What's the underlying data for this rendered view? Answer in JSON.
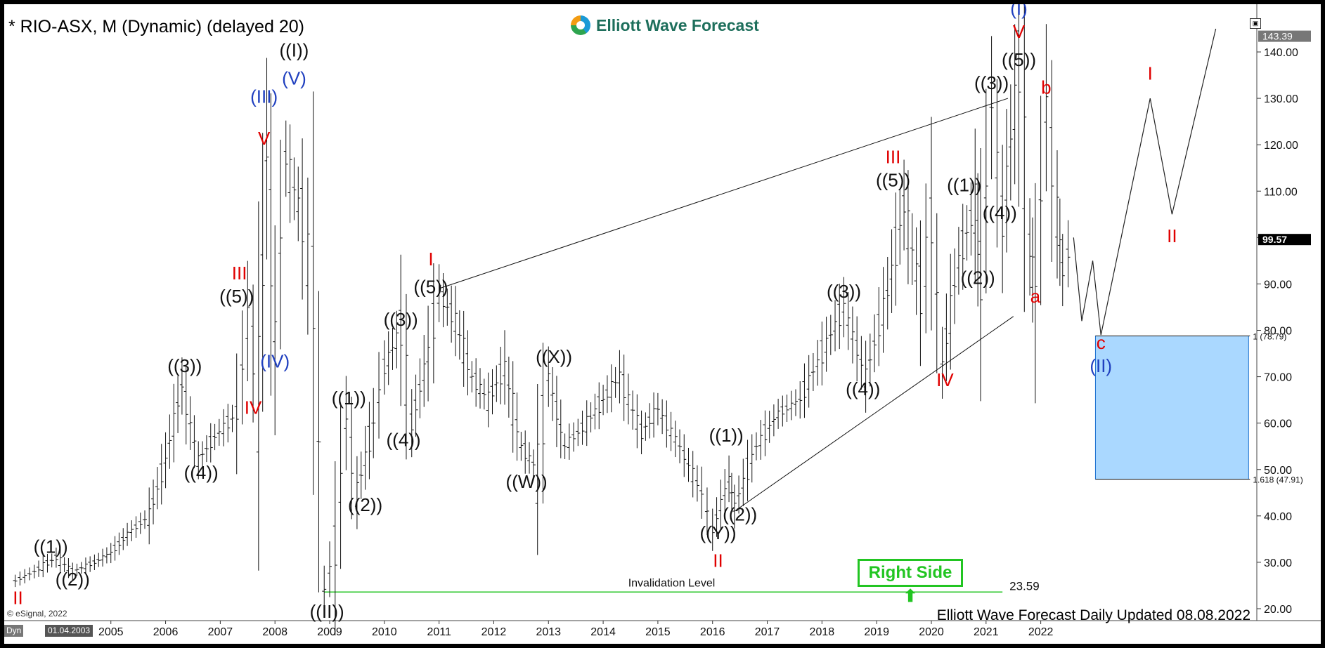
{
  "header": {
    "title": "* RIO-ASX, M (Dynamic) (delayed 20)",
    "brand": "Elliott Wave Forecast"
  },
  "footer": {
    "updated": "Elliott Wave Forecast Daily Updated 08.08.2022",
    "copyright": "© eSignal, 2022",
    "axis_stub": "Dyn",
    "start_date": "01.04.2003"
  },
  "badge": {
    "right_side": "Right Side ⬆"
  },
  "chart_data": {
    "type": "candlestick",
    "title": "* RIO-ASX, M (Dynamic) (delayed 20)",
    "x_axis": {
      "ticks": [
        "2005",
        "2006",
        "2007",
        "2008",
        "2009",
        "2010",
        "2011",
        "2012",
        "2013",
        "2014",
        "2015",
        "2016",
        "2017",
        "2018",
        "2019",
        "2020",
        "2021",
        "2022"
      ]
    },
    "y_axis": {
      "ticks": [
        "20.00",
        "30.00",
        "40.00",
        "50.00",
        "60.00",
        "70.00",
        "80.00",
        "90.00",
        "100.00",
        "110.00",
        "120.00",
        "130.00",
        "140.00"
      ],
      "range": [
        17,
        147
      ],
      "position": "right"
    },
    "price_markers": [
      {
        "value": 143.39,
        "label": "143.39",
        "style": "grey"
      },
      {
        "value": 99.57,
        "label": "99.57",
        "style": "black"
      }
    ],
    "price_path": [
      [
        2003.25,
        26
      ],
      [
        2003.6,
        28
      ],
      [
        2004.0,
        31
      ],
      [
        2004.3,
        28
      ],
      [
        2004.7,
        30
      ],
      [
        2005.0,
        32
      ],
      [
        2005.3,
        36
      ],
      [
        2005.7,
        40
      ],
      [
        2006.0,
        52
      ],
      [
        2006.3,
        68
      ],
      [
        2006.6,
        52
      ],
      [
        2006.9,
        57
      ],
      [
        2007.3,
        62
      ],
      [
        2007.5,
        82
      ],
      [
        2007.7,
        68
      ],
      [
        2007.85,
        117
      ],
      [
        2008.0,
        80
      ],
      [
        2008.2,
        117
      ],
      [
        2008.5,
        104
      ],
      [
        2008.7,
        88
      ],
      [
        2008.9,
        24
      ],
      [
        2009.1,
        33
      ],
      [
        2009.3,
        60
      ],
      [
        2009.5,
        45
      ],
      [
        2009.8,
        60
      ],
      [
        2010.0,
        72
      ],
      [
        2010.3,
        80
      ],
      [
        2010.5,
        60
      ],
      [
        2010.8,
        75
      ],
      [
        2011.0,
        88
      ],
      [
        2011.3,
        82
      ],
      [
        2011.6,
        70
      ],
      [
        2011.9,
        65
      ],
      [
        2012.2,
        72
      ],
      [
        2012.5,
        55
      ],
      [
        2012.8,
        50
      ],
      [
        2013.0,
        70
      ],
      [
        2013.3,
        55
      ],
      [
        2013.7,
        60
      ],
      [
        2014.0,
        65
      ],
      [
        2014.3,
        70
      ],
      [
        2014.7,
        58
      ],
      [
        2015.0,
        63
      ],
      [
        2015.4,
        55
      ],
      [
        2015.8,
        45
      ],
      [
        2016.0,
        37
      ],
      [
        2016.3,
        48
      ],
      [
        2016.4,
        42
      ],
      [
        2016.8,
        55
      ],
      [
        2017.2,
        62
      ],
      [
        2017.6,
        65
      ],
      [
        2018.0,
        75
      ],
      [
        2018.4,
        85
      ],
      [
        2018.8,
        70
      ],
      [
        2019.2,
        88
      ],
      [
        2019.5,
        107
      ],
      [
        2019.8,
        88
      ],
      [
        2020.0,
        103
      ],
      [
        2020.2,
        73
      ],
      [
        2020.5,
        95
      ],
      [
        2020.8,
        107
      ],
      [
        2020.9,
        92
      ],
      [
        2021.1,
        128
      ],
      [
        2021.3,
        104
      ],
      [
        2021.6,
        137
      ],
      [
        2021.8,
        98
      ],
      [
        2021.9,
        88
      ],
      [
        2022.1,
        128
      ],
      [
        2022.3,
        105
      ],
      [
        2022.4,
        93
      ],
      [
        2022.6,
        100
      ]
    ],
    "projection_path": [
      [
        2022.6,
        100
      ],
      [
        2022.75,
        82
      ],
      [
        2022.95,
        95
      ],
      [
        2023.1,
        79
      ],
      [
        2024.0,
        130
      ],
      [
        2024.4,
        105
      ],
      [
        2025.2,
        145
      ]
    ],
    "channel_lines": [
      {
        "from": [
          2011.0,
          89
        ],
        "to": [
          2021.4,
          130
        ]
      },
      {
        "from": [
          2016.4,
          41
        ],
        "to": [
          2021.5,
          83
        ]
      }
    ],
    "invalidation": {
      "value": 23.59,
      "label": "23.59",
      "text": "Invalidation Level",
      "from": 2008.9,
      "to": 2021.3
    },
    "target_zone": {
      "x_from": 2023.0,
      "x_to": 2025.8,
      "y_from": 47.91,
      "y_to": 78.79,
      "label_top": "1 (78.79)",
      "label_bottom": "1.618 (47.91)"
    },
    "wave_labels": [
      {
        "text": "II",
        "x": 2003.3,
        "y": 21,
        "color": "#e00000"
      },
      {
        "text": "((1))",
        "x": 2003.9,
        "y": 32,
        "color": "#111111"
      },
      {
        "text": "((2))",
        "x": 2004.3,
        "y": 25,
        "color": "#111111"
      },
      {
        "text": "((3))",
        "x": 2006.35,
        "y": 71,
        "color": "#111111"
      },
      {
        "text": "((4))",
        "x": 2006.65,
        "y": 48,
        "color": "#111111"
      },
      {
        "text": "((5))",
        "x": 2007.3,
        "y": 86,
        "color": "#111111"
      },
      {
        "text": "III",
        "x": 2007.35,
        "y": 91,
        "color": "#e00000"
      },
      {
        "text": "IV",
        "x": 2007.6,
        "y": 62,
        "color": "#e00000"
      },
      {
        "text": "(III)",
        "x": 2007.8,
        "y": 129,
        "color": "#1f3fbf"
      },
      {
        "text": "V",
        "x": 2007.8,
        "y": 120,
        "color": "#e00000"
      },
      {
        "text": "(IV)",
        "x": 2008.0,
        "y": 72,
        "color": "#1f3fbf"
      },
      {
        "text": "(V)",
        "x": 2008.35,
        "y": 133,
        "color": "#1f3fbf"
      },
      {
        "text": "((I))",
        "x": 2008.35,
        "y": 139,
        "color": "#111111"
      },
      {
        "text": "((II))",
        "x": 2008.95,
        "y": 18,
        "color": "#111111"
      },
      {
        "text": "((1))",
        "x": 2009.35,
        "y": 64,
        "color": "#111111"
      },
      {
        "text": "((2))",
        "x": 2009.65,
        "y": 41,
        "color": "#111111"
      },
      {
        "text": "((3))",
        "x": 2010.3,
        "y": 81,
        "color": "#111111"
      },
      {
        "text": "((4))",
        "x": 2010.35,
        "y": 55,
        "color": "#111111"
      },
      {
        "text": "((5))",
        "x": 2010.85,
        "y": 88,
        "color": "#111111"
      },
      {
        "text": "I",
        "x": 2010.85,
        "y": 94,
        "color": "#e00000"
      },
      {
        "text": "((W))",
        "x": 2012.6,
        "y": 46,
        "color": "#111111"
      },
      {
        "text": "((X))",
        "x": 2013.1,
        "y": 73,
        "color": "#111111"
      },
      {
        "text": "((1))",
        "x": 2016.25,
        "y": 56,
        "color": "#111111"
      },
      {
        "text": "((2))",
        "x": 2016.5,
        "y": 39,
        "color": "#111111"
      },
      {
        "text": "((Y))",
        "x": 2016.1,
        "y": 35,
        "color": "#111111"
      },
      {
        "text": "II",
        "x": 2016.1,
        "y": 29,
        "color": "#e00000"
      },
      {
        "text": "((3))",
        "x": 2018.4,
        "y": 87,
        "color": "#111111"
      },
      {
        "text": "((4))",
        "x": 2018.75,
        "y": 66,
        "color": "#111111"
      },
      {
        "text": "((5))",
        "x": 2019.3,
        "y": 111,
        "color": "#111111"
      },
      {
        "text": "III",
        "x": 2019.3,
        "y": 116,
        "color": "#e00000"
      },
      {
        "text": "IV",
        "x": 2020.25,
        "y": 68,
        "color": "#e00000"
      },
      {
        "text": "((1))",
        "x": 2020.6,
        "y": 110,
        "color": "#111111"
      },
      {
        "text": "((2))",
        "x": 2020.85,
        "y": 90,
        "color": "#111111"
      },
      {
        "text": "((3))",
        "x": 2021.1,
        "y": 132,
        "color": "#111111"
      },
      {
        "text": "((4))",
        "x": 2021.25,
        "y": 104,
        "color": "#111111"
      },
      {
        "text": "((5))",
        "x": 2021.6,
        "y": 137,
        "color": "#111111"
      },
      {
        "text": "V",
        "x": 2021.6,
        "y": 143,
        "color": "#e00000"
      },
      {
        "text": "(I)",
        "x": 2021.6,
        "y": 148,
        "color": "#1f3fbf"
      },
      {
        "text": "a",
        "x": 2021.9,
        "y": 86,
        "color": "#e00000"
      },
      {
        "text": "b",
        "x": 2022.1,
        "y": 131,
        "color": "#e00000"
      },
      {
        "text": "c",
        "x": 2023.1,
        "y": 76,
        "color": "#e00000"
      },
      {
        "text": "(II)",
        "x": 2023.1,
        "y": 71,
        "color": "#1f3fbf"
      },
      {
        "text": "I",
        "x": 2024.0,
        "y": 134,
        "color": "#e00000"
      },
      {
        "text": "II",
        "x": 2024.4,
        "y": 99,
        "color": "#e00000"
      }
    ],
    "colors": {
      "price": "#111111",
      "projection": "#222222",
      "channel": "#111111",
      "invalidation": "#22c522",
      "target_fill": "#aad8ff",
      "target_border": "#1a6fcf"
    },
    "grid": false
  }
}
